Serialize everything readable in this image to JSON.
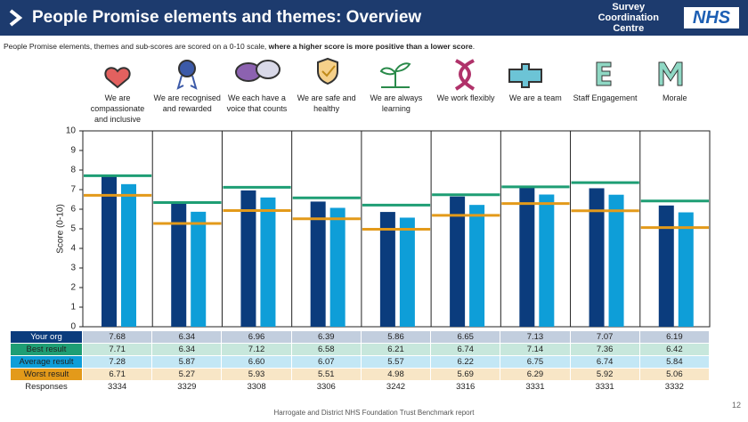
{
  "header": {
    "title": "People Promise elements and themes: Overview",
    "logo_lines": [
      "Survey",
      "Coordination",
      "Centre"
    ],
    "logo_badge": "NHS"
  },
  "subtitle": [
    "People Promise elements, themes and sub-scores are scored on a 0-10 scale, ",
    "where a higher score is more positive than a lower score",
    "."
  ],
  "chart_data": {
    "type": "bar",
    "categories": [
      "We are compassionate and inclusive",
      "We are recognised and rewarded",
      "We each have a voice that counts",
      "We are safe and healthy",
      "We are always learning",
      "We work flexibly",
      "We are a team",
      "Staff Engagement",
      "Morale"
    ],
    "y_label": "Score (0-10)",
    "ylim": [
      0,
      10
    ],
    "yticks": [
      0,
      1,
      2,
      3,
      4,
      5,
      6,
      7,
      8,
      9,
      10
    ],
    "grid": false,
    "series": [
      {
        "name": "Your org",
        "color": "#0b3c7d",
        "mark": "bar",
        "values": [
          7.68,
          6.34,
          6.96,
          6.39,
          5.86,
          6.65,
          7.13,
          7.07,
          6.19
        ]
      },
      {
        "name": "Best result",
        "color": "#1e9e74",
        "mark": "line",
        "values": [
          7.71,
          6.34,
          7.12,
          6.58,
          6.21,
          6.74,
          7.14,
          7.36,
          6.42
        ]
      },
      {
        "name": "Average result",
        "color": "#0e9ed8",
        "mark": "bar",
        "values": [
          7.28,
          5.87,
          6.6,
          6.07,
          5.57,
          6.22,
          6.75,
          6.74,
          5.84
        ],
        "value_labels": [
          "7.28",
          "5.87",
          "6.60",
          "6.07",
          "5.57",
          "6.22",
          "6.75",
          "6.74",
          "5.84"
        ]
      },
      {
        "name": "Worst result",
        "color": "#e39a1a",
        "mark": "line",
        "values": [
          6.71,
          5.27,
          5.93,
          5.51,
          4.98,
          5.69,
          6.29,
          5.92,
          5.06
        ]
      }
    ],
    "responses": {
      "label": "Responses",
      "values": [
        3334,
        3329,
        3308,
        3306,
        3242,
        3316,
        3331,
        3331,
        3332
      ]
    }
  },
  "footer": "Harrogate and District NHS Foundation Trust Benchmark report",
  "page_number": 12
}
